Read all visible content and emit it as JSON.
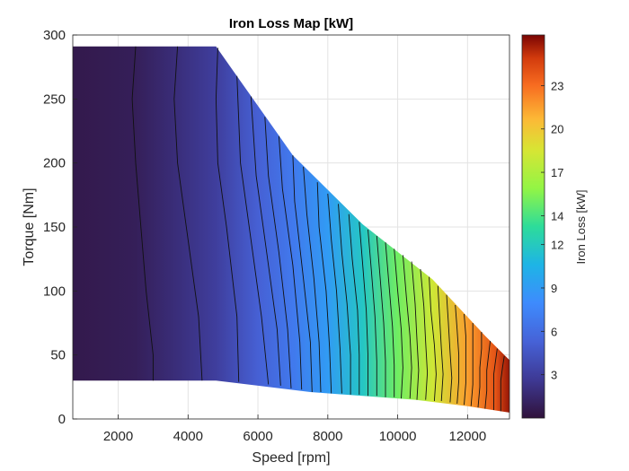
{
  "chart_data": {
    "type": "contour",
    "title": "Iron Loss Map [kW]",
    "xlabel": "Speed [rpm]",
    "ylabel": "Torque [Nm]",
    "xlim": [
      700,
      13200
    ],
    "ylim": [
      0,
      300
    ],
    "xticks": [
      2000,
      4000,
      6000,
      8000,
      10000,
      12000
    ],
    "xtick_labels": [
      "2000",
      "4000",
      "6000",
      "8000",
      "10000",
      "12000"
    ],
    "yticks": [
      0,
      50,
      100,
      150,
      200,
      250,
      300
    ],
    "ytick_labels": [
      "0",
      "50",
      "100",
      "150",
      "200",
      "250",
      "300"
    ],
    "grid": true,
    "region": {
      "top_edge": [
        [
          700,
          291
        ],
        [
          4800,
          291
        ],
        [
          7000,
          206
        ],
        [
          9000,
          152
        ],
        [
          11000,
          109
        ],
        [
          12500,
          65
        ],
        [
          13200,
          46
        ]
      ],
      "bottom_edge": [
        [
          700,
          30
        ],
        [
          4800,
          30
        ],
        [
          6000,
          26
        ],
        [
          7500,
          21
        ],
        [
          9000,
          18
        ],
        [
          10500,
          15
        ],
        [
          12000,
          10
        ],
        [
          13200,
          5
        ]
      ]
    },
    "contour_lines": [
      {
        "level": 1.0,
        "points": [
          [
            2500,
            291
          ],
          [
            2400,
            250
          ],
          [
            2500,
            200
          ],
          [
            2800,
            100
          ],
          [
            3000,
            50
          ],
          [
            3000,
            30
          ]
        ]
      },
      {
        "level": 2.0,
        "points": [
          [
            3700,
            291
          ],
          [
            3600,
            250
          ],
          [
            3700,
            200
          ],
          [
            4000,
            140
          ],
          [
            4300,
            80
          ],
          [
            4400,
            30
          ]
        ]
      },
      {
        "level": 3.0,
        "points": [
          [
            4850,
            290
          ],
          [
            4800,
            250
          ],
          [
            4850,
            200
          ],
          [
            5100,
            150
          ],
          [
            5400,
            80
          ],
          [
            5450,
            29
          ]
        ]
      },
      {
        "level": 4.0,
        "points": [
          [
            5400,
            268
          ],
          [
            5500,
            200
          ],
          [
            5800,
            140
          ],
          [
            6100,
            80
          ],
          [
            6300,
            27
          ]
        ]
      },
      {
        "level": 4.7,
        "points": [
          [
            5800,
            252
          ],
          [
            5950,
            190
          ],
          [
            6250,
            130
          ],
          [
            6550,
            70
          ],
          [
            6650,
            26
          ]
        ]
      },
      {
        "level": 5.4,
        "points": [
          [
            6200,
            236
          ],
          [
            6300,
            190
          ],
          [
            6600,
            130
          ],
          [
            6850,
            70
          ],
          [
            6950,
            24
          ]
        ]
      },
      {
        "level": 6.0,
        "points": [
          [
            6600,
            221
          ],
          [
            6700,
            180
          ],
          [
            7000,
            120
          ],
          [
            7200,
            60
          ],
          [
            7250,
            23
          ]
        ]
      },
      {
        "level": 6.8,
        "points": [
          [
            7000,
            206
          ],
          [
            7050,
            170
          ],
          [
            7300,
            110
          ],
          [
            7500,
            60
          ],
          [
            7550,
            21
          ]
        ]
      },
      {
        "level": 7.5,
        "points": [
          [
            7300,
            197
          ],
          [
            7400,
            160
          ],
          [
            7600,
            110
          ],
          [
            7750,
            60
          ],
          [
            7800,
            21
          ]
        ]
      },
      {
        "level": 8.3,
        "points": [
          [
            7700,
            185
          ],
          [
            7750,
            150
          ],
          [
            7950,
            100
          ],
          [
            8050,
            55
          ],
          [
            8100,
            20
          ]
        ]
      },
      {
        "level": 9.0,
        "points": [
          [
            8000,
            176
          ],
          [
            8100,
            140
          ],
          [
            8250,
            100
          ],
          [
            8350,
            55
          ],
          [
            8400,
            20
          ]
        ]
      },
      {
        "level": 9.8,
        "points": [
          [
            8300,
            168
          ],
          [
            8400,
            130
          ],
          [
            8550,
            90
          ],
          [
            8650,
            50
          ],
          [
            8650,
            19
          ]
        ]
      },
      {
        "level": 10.6,
        "points": [
          [
            8600,
            160
          ],
          [
            8700,
            125
          ],
          [
            8850,
            85
          ],
          [
            8900,
            50
          ],
          [
            8900,
            19
          ]
        ]
      },
      {
        "level": 11.4,
        "points": [
          [
            8900,
            154
          ],
          [
            9000,
            120
          ],
          [
            9100,
            85
          ],
          [
            9150,
            50
          ],
          [
            9150,
            18
          ]
        ]
      },
      {
        "level": 12.2,
        "points": [
          [
            9150,
            148
          ],
          [
            9250,
            115
          ],
          [
            9350,
            80
          ],
          [
            9400,
            45
          ],
          [
            9400,
            18
          ]
        ]
      },
      {
        "level": 13.0,
        "points": [
          [
            9400,
            143
          ],
          [
            9500,
            110
          ],
          [
            9600,
            75
          ],
          [
            9650,
            45
          ],
          [
            9650,
            17
          ]
        ]
      },
      {
        "level": 13.8,
        "points": [
          [
            9650,
            138
          ],
          [
            9750,
            105
          ],
          [
            9850,
            72
          ],
          [
            9900,
            42
          ],
          [
            9900,
            17
          ]
        ]
      },
      {
        "level": 14.6,
        "points": [
          [
            9900,
            133
          ],
          [
            10000,
            100
          ],
          [
            10100,
            70
          ],
          [
            10150,
            40
          ],
          [
            10100,
            16
          ]
        ]
      },
      {
        "level": 15.4,
        "points": [
          [
            10150,
            128
          ],
          [
            10250,
            95
          ],
          [
            10350,
            65
          ],
          [
            10400,
            40
          ],
          [
            10350,
            16
          ]
        ]
      },
      {
        "level": 16.2,
        "points": [
          [
            10400,
            123
          ],
          [
            10500,
            90
          ],
          [
            10550,
            62
          ],
          [
            10600,
            38
          ],
          [
            10550,
            15
          ]
        ]
      },
      {
        "level": 17.0,
        "points": [
          [
            10650,
            117
          ],
          [
            10750,
            88
          ],
          [
            10800,
            60
          ],
          [
            10850,
            36
          ],
          [
            10800,
            15
          ]
        ]
      },
      {
        "level": 17.8,
        "points": [
          [
            10900,
            111
          ],
          [
            10950,
            85
          ],
          [
            11050,
            58
          ],
          [
            11100,
            35
          ],
          [
            11050,
            14
          ]
        ]
      },
      {
        "level": 18.6,
        "points": [
          [
            11150,
            104
          ],
          [
            11200,
            80
          ],
          [
            11250,
            55
          ],
          [
            11300,
            35
          ],
          [
            11250,
            14
          ]
        ]
      },
      {
        "level": 19.4,
        "points": [
          [
            11400,
            97
          ],
          [
            11450,
            75
          ],
          [
            11500,
            52
          ],
          [
            11550,
            32
          ],
          [
            11500,
            13
          ]
        ]
      },
      {
        "level": 20.2,
        "points": [
          [
            11650,
            89
          ],
          [
            11700,
            70
          ],
          [
            11750,
            50
          ],
          [
            11750,
            30
          ],
          [
            11700,
            12
          ]
        ]
      },
      {
        "level": 21.0,
        "points": [
          [
            11900,
            82
          ],
          [
            11950,
            65
          ],
          [
            11950,
            47
          ],
          [
            11950,
            28
          ],
          [
            11900,
            11
          ]
        ]
      },
      {
        "level": 21.8,
        "points": [
          [
            12150,
            75
          ],
          [
            12150,
            60
          ],
          [
            12150,
            45
          ],
          [
            12150,
            27
          ],
          [
            12100,
            10
          ]
        ]
      },
      {
        "level": 22.6,
        "points": [
          [
            12400,
            68
          ],
          [
            12400,
            55
          ],
          [
            12350,
            40
          ],
          [
            12350,
            25
          ],
          [
            12300,
            9
          ]
        ]
      },
      {
        "level": 23.4,
        "points": [
          [
            12650,
            61
          ],
          [
            12600,
            50
          ],
          [
            12550,
            38
          ],
          [
            12550,
            22
          ],
          [
            12500,
            8
          ]
        ]
      },
      {
        "level": 24.2,
        "points": [
          [
            12850,
            55
          ],
          [
            12800,
            45
          ],
          [
            12750,
            35
          ],
          [
            12750,
            20
          ],
          [
            12750,
            7
          ]
        ]
      },
      {
        "level": 25.0,
        "points": [
          [
            13050,
            49
          ],
          [
            13000,
            40
          ],
          [
            12950,
            30
          ],
          [
            12950,
            18
          ],
          [
            12950,
            6
          ]
        ]
      }
    ],
    "colorbar": {
      "label": "Iron Loss [kW]",
      "range": [
        0,
        26.5
      ],
      "ticks": [
        3,
        6,
        9,
        12,
        14,
        17,
        20,
        23
      ],
      "tick_labels": [
        "3",
        "6",
        "9",
        "12",
        "14",
        "17",
        "20",
        "23"
      ],
      "colormap": "turbo"
    }
  }
}
